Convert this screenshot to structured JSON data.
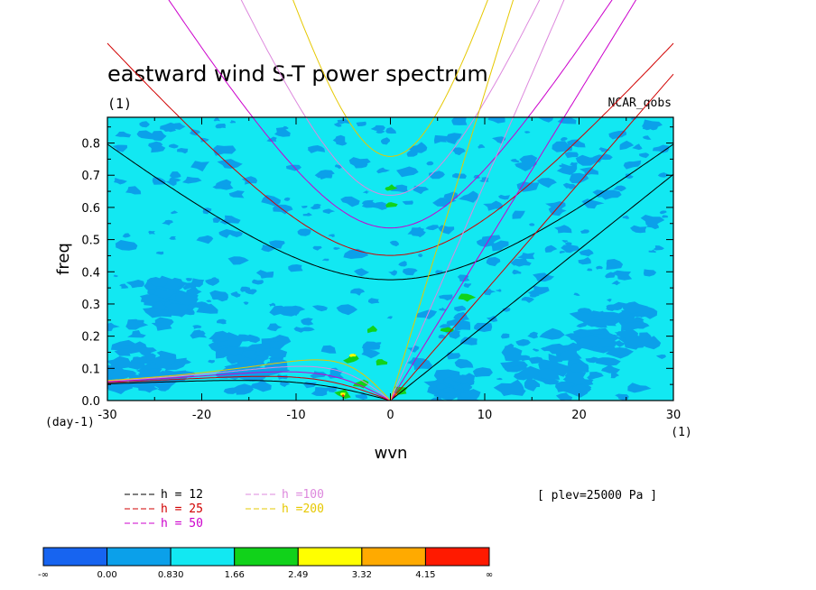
{
  "chart_data": {
    "type": "heatmap",
    "title": "eastward wind S-T power spectrum",
    "title_units": "(1)",
    "dataset": "NCAR_qobs",
    "xlabel": "wvn",
    "xunits": "(1)",
    "ylabel": "freq",
    "yunits": "(day-1)",
    "xlim": [
      -30,
      30
    ],
    "ylim": [
      0,
      0.88
    ],
    "x_ticks": [
      -30,
      -20,
      -10,
      0,
      10,
      20,
      30
    ],
    "y_ticks": [
      0.0,
      0.1,
      0.2,
      0.3,
      0.4,
      0.5,
      0.6,
      0.7,
      0.8
    ],
    "y_tick_labels": [
      "0.0",
      "0.1",
      "0.2",
      "0.3",
      "0.4",
      "0.5",
      "0.6",
      "0.7",
      "0.8"
    ],
    "dispersion_curves": [
      {
        "name": "h = 12",
        "h": 12,
        "color": "#000000"
      },
      {
        "name": "h = 25",
        "h": 25,
        "color": "#d10000"
      },
      {
        "name": "h = 50",
        "h": 50,
        "color": "#cc00cc"
      },
      {
        "name": "h =100",
        "h": 100,
        "color": "#dd88dd"
      },
      {
        "name": "h =200",
        "h": 200,
        "color": "#e6c800"
      }
    ],
    "level_annotation": "[ plev=25000 Pa ]",
    "colorbar": {
      "labels": [
        "-∞",
        "0.00",
        "0.830",
        "1.66",
        "2.49",
        "3.32",
        "4.15",
        "∞"
      ],
      "colors": [
        "#1764f0",
        "#0ba0ea",
        "#12e8f2",
        "#11d21a",
        "#ffff00",
        "#ffaa00",
        "#ff1a00"
      ]
    }
  }
}
